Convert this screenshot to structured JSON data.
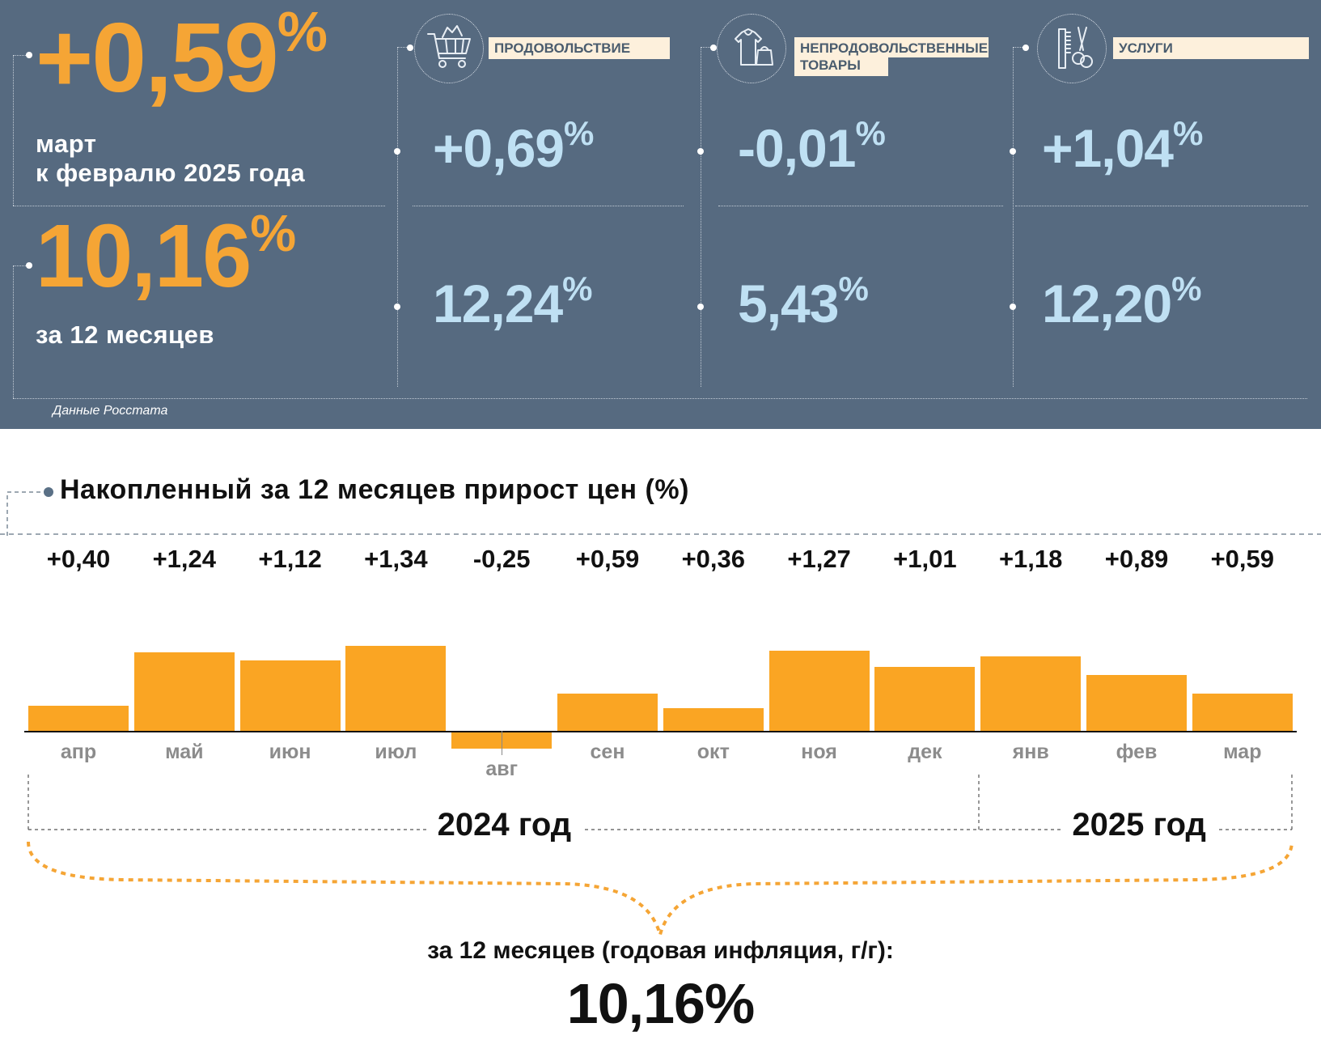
{
  "monthly": {
    "value": "+0,59",
    "pct": "%",
    "line1": "март",
    "line2": "к февралю 2025 года"
  },
  "annual": {
    "value": "10,16",
    "pct": "%",
    "line1": "за 12 месяцев"
  },
  "categories": [
    {
      "label": "ПРОДОВОЛЬСТВИЕ",
      "icon": "shopping-cart-icon",
      "monthly": "+0,69",
      "annual": "12,24"
    },
    {
      "label_line1": "НЕПРОДОВОЛЬСТВЕННЫЕ",
      "label_line2": "ТОВАРЫ",
      "icon": "clothing-bag-icon",
      "monthly": "-0,01",
      "annual": "5,43"
    },
    {
      "label": "УСЛУГИ",
      "icon": "comb-scissors-icon",
      "monthly": "+1,04",
      "annual": "12,20"
    }
  ],
  "pct_sign": "%",
  "source": "Данные Росстата",
  "colors": {
    "panel_bg": "#566a80",
    "accent_orange": "#f5a535",
    "value_blue": "#bfe0f3",
    "bar": "#faa523"
  },
  "chart_data": {
    "type": "bar",
    "title": "Накопленный за 12 месяцев прирост цен (%)",
    "categories": [
      "апр",
      "май",
      "июн",
      "июл",
      "авг",
      "сен",
      "окт",
      "ноя",
      "дек",
      "янв",
      "фев",
      "мар"
    ],
    "values": [
      0.4,
      1.24,
      1.12,
      1.34,
      -0.25,
      0.59,
      0.36,
      1.27,
      1.01,
      1.18,
      0.89,
      0.59
    ],
    "value_labels": [
      "+0,40",
      "+1,24",
      "+1,12",
      "+1,34",
      "-0,25",
      "+0,59",
      "+0,36",
      "+1,27",
      "+1,01",
      "+1,18",
      "+0,89",
      "+0,59"
    ],
    "years": [
      "2024 год",
      "2025 год"
    ],
    "year_month_counts": [
      9,
      3
    ],
    "summary_label": "за 12 месяцев (годовая инфляция, г/г):",
    "summary_value": "10,16%",
    "grid": false
  }
}
